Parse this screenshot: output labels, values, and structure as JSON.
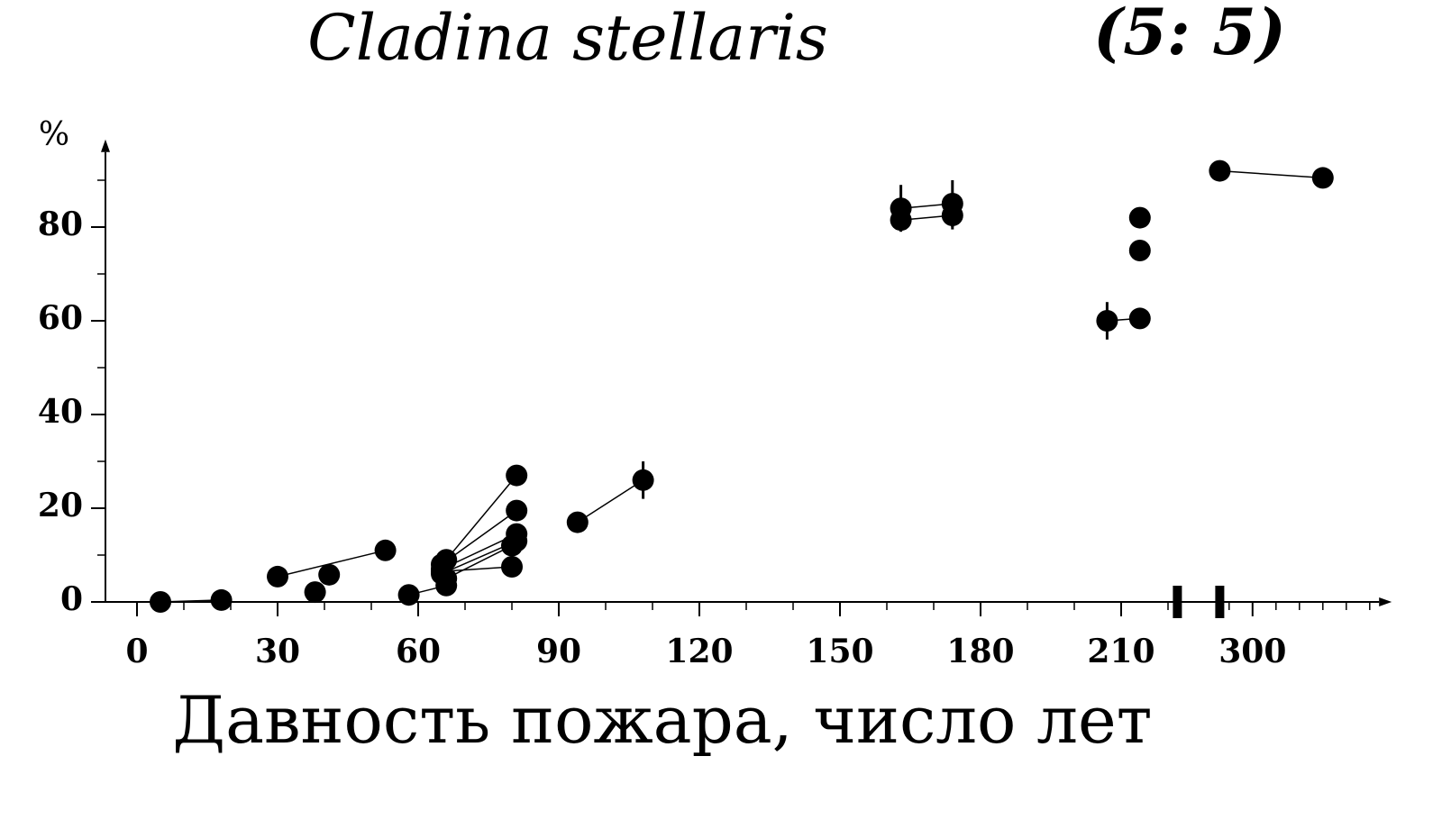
{
  "chart_data": {
    "type": "scatter",
    "title": "Cladina stellaris",
    "subtitle": "(5: 5)",
    "ylabel": "%",
    "xlabel": "Давность пожара, число лет",
    "xlim": [
      0,
      327
    ],
    "xbreak": [
      222,
      293
    ],
    "ylim": [
      0,
      96
    ],
    "xticks": [
      0,
      30,
      60,
      90,
      120,
      150,
      180,
      210,
      300
    ],
    "xminorticks": [
      10,
      20,
      40,
      50,
      70,
      80,
      100,
      110,
      130,
      140,
      160,
      170,
      190,
      200,
      220,
      295,
      305,
      310,
      315,
      320,
      325
    ],
    "yticks": [
      0,
      20,
      40,
      60,
      80
    ],
    "yminorticks": [
      10,
      30,
      50,
      70,
      90
    ],
    "color": "#000000",
    "groups": [
      {
        "x": [
          5,
          18
        ],
        "y": [
          0,
          0.4
        ]
      },
      {
        "x": [
          30,
          53
        ],
        "y": [
          5.4,
          11
        ]
      },
      {
        "x": [
          38
        ],
        "y": [
          2.1
        ]
      },
      {
        "x": [
          41
        ],
        "y": [
          5.8
        ]
      },
      {
        "x": [
          58,
          66
        ],
        "y": [
          1.5,
          3.5
        ]
      },
      {
        "x": [
          66,
          81
        ],
        "y": [
          9,
          27
        ],
        "yerr": [
          null,
          2
        ]
      },
      {
        "x": [
          65,
          81
        ],
        "y": [
          8,
          19.5
        ]
      },
      {
        "x": [
          65,
          81
        ],
        "y": [
          7,
          14.5
        ]
      },
      {
        "x": [
          65,
          81
        ],
        "y": [
          6,
          13
        ]
      },
      {
        "x": [
          66,
          80
        ],
        "y": [
          5,
          12
        ]
      },
      {
        "x": [
          65,
          80
        ],
        "y": [
          6.5,
          7.5
        ]
      },
      {
        "x": [
          94,
          108
        ],
        "y": [
          17,
          26
        ],
        "yerr": [
          null,
          4
        ]
      },
      {
        "x": [
          163,
          174
        ],
        "y": [
          84,
          85
        ],
        "yerr": [
          5,
          5
        ]
      },
      {
        "x": [
          163,
          174
        ],
        "y": [
          81.5,
          82.5
        ],
        "yerr": [
          null,
          3
        ]
      },
      {
        "x": [
          207,
          214
        ],
        "y": [
          60,
          60.5
        ],
        "yerr": [
          4,
          2
        ]
      },
      {
        "x": [
          214
        ],
        "y": [
          82
        ]
      },
      {
        "x": [
          214
        ],
        "y": [
          75
        ]
      },
      {
        "x": [
          293,
          315
        ],
        "y": [
          92,
          90.5
        ]
      }
    ]
  }
}
